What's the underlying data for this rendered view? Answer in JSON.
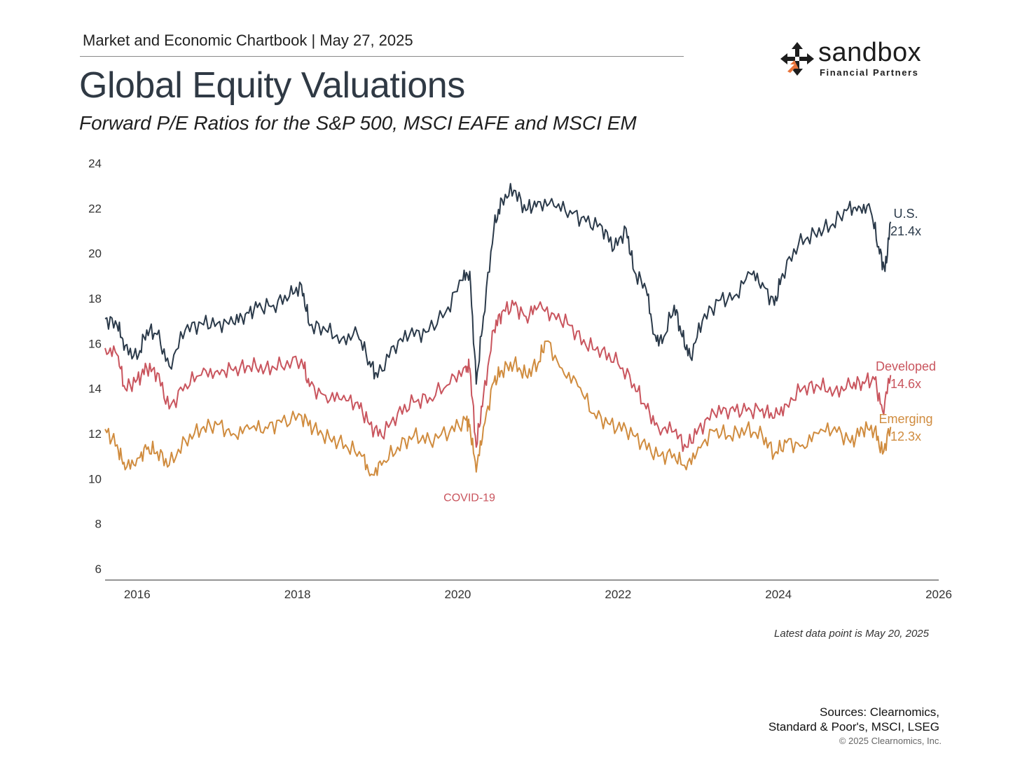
{
  "header": {
    "chartbook_line": "Market and Economic Chartbook | May 27, 2025",
    "title": "Global Equity Valuations",
    "subtitle": "Forward P/E Ratios for the S&P 500, MSCI EAFE and MSCI EM"
  },
  "logo": {
    "word": "sandbox",
    "sub": "Financial Partners",
    "icon": "four-arrows-icon",
    "colors": {
      "dark": "#1d1d1d",
      "accent": "#e8743b"
    }
  },
  "footer": {
    "latest_note": "Latest data point is May 20, 2025",
    "sources_line1": "Sources: Clearnomics,",
    "sources_line2": "Standard & Poor's, MSCI, LSEG",
    "copyright": "© 2025 Clearnomics, Inc."
  },
  "chart_data": {
    "type": "line",
    "title": "Global Equity Valuations",
    "subtitle": "Forward P/E Ratios for the S&P 500, MSCI EAFE and MSCI EM",
    "xlim": [
      2015.6,
      2026.0
    ],
    "ylim": [
      6,
      24
    ],
    "x_ticks": [
      2016,
      2018,
      2020,
      2022,
      2024,
      2026
    ],
    "x_tick_labels": [
      "2016",
      "2018",
      "2020",
      "2022",
      "2024",
      "2026"
    ],
    "y_ticks": [
      6,
      8,
      10,
      12,
      14,
      16,
      18,
      20,
      22,
      24
    ],
    "y_tick_labels": [
      "6",
      "8",
      "10",
      "12",
      "14",
      "16",
      "18",
      "20",
      "22",
      "24"
    ],
    "grid": false,
    "annotation": {
      "text": "COVID-19",
      "x": 2020.25,
      "y": 9.0,
      "color": "#c9555e"
    },
    "series": [
      {
        "name": "U.S.",
        "end_label": "21.4x",
        "color": "#2b3a4a",
        "points": [
          [
            2015.6,
            17.1
          ],
          [
            2015.75,
            16.8
          ],
          [
            2015.85,
            15.9
          ],
          [
            2016.0,
            15.3
          ],
          [
            2016.12,
            16.6
          ],
          [
            2016.25,
            16.4
          ],
          [
            2016.4,
            15.0
          ],
          [
            2016.6,
            16.6
          ],
          [
            2016.8,
            16.9
          ],
          [
            2017.0,
            16.9
          ],
          [
            2017.2,
            16.9
          ],
          [
            2017.35,
            17.3
          ],
          [
            2017.5,
            17.6
          ],
          [
            2017.7,
            17.7
          ],
          [
            2017.9,
            18.1
          ],
          [
            2018.05,
            18.6
          ],
          [
            2018.15,
            16.8
          ],
          [
            2018.35,
            16.6
          ],
          [
            2018.55,
            16.2
          ],
          [
            2018.75,
            16.4
          ],
          [
            2018.9,
            15.2
          ],
          [
            2019.0,
            14.5
          ],
          [
            2019.2,
            15.9
          ],
          [
            2019.4,
            16.4
          ],
          [
            2019.6,
            16.5
          ],
          [
            2019.85,
            17.4
          ],
          [
            2020.05,
            18.8
          ],
          [
            2020.15,
            19.2
          ],
          [
            2020.23,
            14.2
          ],
          [
            2020.32,
            17.2
          ],
          [
            2020.45,
            21.1
          ],
          [
            2020.55,
            22.4
          ],
          [
            2020.7,
            22.8
          ],
          [
            2020.85,
            21.9
          ],
          [
            2021.0,
            22.3
          ],
          [
            2021.2,
            22.1
          ],
          [
            2021.4,
            21.9
          ],
          [
            2021.6,
            21.4
          ],
          [
            2021.8,
            21.2
          ],
          [
            2021.95,
            20.2
          ],
          [
            2022.1,
            21.1
          ],
          [
            2022.2,
            19.2
          ],
          [
            2022.35,
            18.4
          ],
          [
            2022.45,
            16.4
          ],
          [
            2022.55,
            16.0
          ],
          [
            2022.7,
            17.7
          ],
          [
            2022.8,
            16.3
          ],
          [
            2022.9,
            15.4
          ],
          [
            2023.05,
            17.0
          ],
          [
            2023.25,
            17.9
          ],
          [
            2023.45,
            18.1
          ],
          [
            2023.65,
            19.1
          ],
          [
            2023.8,
            18.7
          ],
          [
            2023.95,
            17.7
          ],
          [
            2024.05,
            19.1
          ],
          [
            2024.25,
            20.4
          ],
          [
            2024.45,
            20.9
          ],
          [
            2024.65,
            21.2
          ],
          [
            2024.85,
            21.9
          ],
          [
            2025.0,
            22.1
          ],
          [
            2025.15,
            21.9
          ],
          [
            2025.25,
            20.3
          ],
          [
            2025.33,
            19.2
          ],
          [
            2025.4,
            21.4
          ]
        ]
      },
      {
        "name": "Developed",
        "end_label": "14.6x",
        "color": "#c9555e",
        "points": [
          [
            2015.6,
            15.8
          ],
          [
            2015.75,
            15.5
          ],
          [
            2015.85,
            14.0
          ],
          [
            2016.0,
            14.4
          ],
          [
            2016.12,
            14.9
          ],
          [
            2016.25,
            14.7
          ],
          [
            2016.4,
            13.1
          ],
          [
            2016.6,
            14.2
          ],
          [
            2016.8,
            14.6
          ],
          [
            2017.0,
            14.8
          ],
          [
            2017.2,
            14.8
          ],
          [
            2017.4,
            15.0
          ],
          [
            2017.6,
            14.9
          ],
          [
            2017.8,
            15.0
          ],
          [
            2018.05,
            15.3
          ],
          [
            2018.15,
            14.1
          ],
          [
            2018.35,
            13.7
          ],
          [
            2018.55,
            13.5
          ],
          [
            2018.75,
            13.4
          ],
          [
            2018.9,
            12.4
          ],
          [
            2019.05,
            11.9
          ],
          [
            2019.25,
            12.9
          ],
          [
            2019.45,
            13.4
          ],
          [
            2019.65,
            13.6
          ],
          [
            2019.9,
            14.2
          ],
          [
            2020.1,
            15.0
          ],
          [
            2020.15,
            14.9
          ],
          [
            2020.23,
            11.4
          ],
          [
            2020.32,
            13.7
          ],
          [
            2020.45,
            16.6
          ],
          [
            2020.55,
            17.4
          ],
          [
            2020.7,
            17.7
          ],
          [
            2020.85,
            17.2
          ],
          [
            2021.0,
            17.6
          ],
          [
            2021.2,
            17.3
          ],
          [
            2021.4,
            16.8
          ],
          [
            2021.6,
            15.9
          ],
          [
            2021.8,
            15.7
          ],
          [
            2022.0,
            15.1
          ],
          [
            2022.2,
            14.2
          ],
          [
            2022.35,
            13.1
          ],
          [
            2022.5,
            12.3
          ],
          [
            2022.7,
            12.1
          ],
          [
            2022.85,
            11.4
          ],
          [
            2023.0,
            12.2
          ],
          [
            2023.2,
            12.9
          ],
          [
            2023.4,
            13.1
          ],
          [
            2023.6,
            13.0
          ],
          [
            2023.8,
            13.1
          ],
          [
            2023.95,
            12.7
          ],
          [
            2024.1,
            13.3
          ],
          [
            2024.3,
            14.0
          ],
          [
            2024.5,
            14.1
          ],
          [
            2024.7,
            13.9
          ],
          [
            2024.9,
            14.1
          ],
          [
            2025.05,
            14.3
          ],
          [
            2025.2,
            14.4
          ],
          [
            2025.3,
            13.0
          ],
          [
            2025.4,
            14.6
          ]
        ]
      },
      {
        "name": "Emerging",
        "end_label": "12.3x",
        "color": "#d08c3f",
        "points": [
          [
            2015.6,
            12.2
          ],
          [
            2015.75,
            11.5
          ],
          [
            2015.85,
            10.4
          ],
          [
            2016.0,
            10.9
          ],
          [
            2016.12,
            11.3
          ],
          [
            2016.25,
            11.2
          ],
          [
            2016.4,
            10.6
          ],
          [
            2016.6,
            11.7
          ],
          [
            2016.8,
            12.2
          ],
          [
            2017.0,
            12.4
          ],
          [
            2017.2,
            12.0
          ],
          [
            2017.4,
            12.2
          ],
          [
            2017.6,
            12.3
          ],
          [
            2017.8,
            12.5
          ],
          [
            2018.05,
            12.8
          ],
          [
            2018.2,
            12.2
          ],
          [
            2018.4,
            11.8
          ],
          [
            2018.6,
            11.5
          ],
          [
            2018.8,
            11.0
          ],
          [
            2018.92,
            10.2
          ],
          [
            2019.05,
            10.6
          ],
          [
            2019.25,
            11.4
          ],
          [
            2019.45,
            11.9
          ],
          [
            2019.65,
            11.7
          ],
          [
            2019.9,
            12.1
          ],
          [
            2020.1,
            12.6
          ],
          [
            2020.15,
            12.4
          ],
          [
            2020.23,
            10.3
          ],
          [
            2020.32,
            12.3
          ],
          [
            2020.45,
            14.3
          ],
          [
            2020.55,
            14.8
          ],
          [
            2020.7,
            15.1
          ],
          [
            2020.85,
            14.6
          ],
          [
            2021.0,
            15.1
          ],
          [
            2021.1,
            16.1
          ],
          [
            2021.3,
            14.9
          ],
          [
            2021.5,
            14.1
          ],
          [
            2021.7,
            12.9
          ],
          [
            2021.9,
            12.4
          ],
          [
            2022.1,
            12.2
          ],
          [
            2022.3,
            11.6
          ],
          [
            2022.5,
            11.0
          ],
          [
            2022.7,
            11.1
          ],
          [
            2022.85,
            10.4
          ],
          [
            2023.0,
            11.4
          ],
          [
            2023.2,
            12.1
          ],
          [
            2023.4,
            11.9
          ],
          [
            2023.6,
            12.2
          ],
          [
            2023.8,
            11.9
          ],
          [
            2023.95,
            11.1
          ],
          [
            2024.1,
            11.6
          ],
          [
            2024.3,
            11.5
          ],
          [
            2024.5,
            12.0
          ],
          [
            2024.7,
            12.3
          ],
          [
            2024.9,
            11.6
          ],
          [
            2025.05,
            12.2
          ],
          [
            2025.2,
            12.2
          ],
          [
            2025.3,
            11.1
          ],
          [
            2025.4,
            12.3
          ]
        ]
      }
    ]
  }
}
